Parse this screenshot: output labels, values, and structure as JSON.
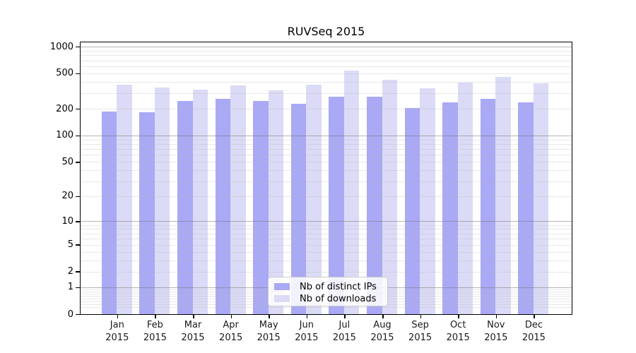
{
  "title": "RUVSeq 2015",
  "chart_data": {
    "type": "bar",
    "title": "RUVSeq 2015",
    "categories": [
      "Jan",
      "Feb",
      "Mar",
      "Apr",
      "May",
      "Jun",
      "Jul",
      "Aug",
      "Sep",
      "Oct",
      "Nov",
      "Dec"
    ],
    "category_year": "2015",
    "series": [
      {
        "name": "Nb of distinct IPs",
        "color": "#a9a9f5",
        "values": [
          187,
          184,
          246,
          258,
          243,
          228,
          274,
          274,
          204,
          236,
          258,
          238
        ]
      },
      {
        "name": "Nb of downloads",
        "color": "#dbdbf7",
        "values": [
          372,
          345,
          327,
          364,
          323,
          370,
          533,
          421,
          339,
          395,
          455,
          386
        ]
      }
    ],
    "yscale": "log1p",
    "yticks": [
      0,
      1,
      2,
      5,
      10,
      20,
      50,
      100,
      200,
      500,
      1000
    ],
    "ylim": [
      0,
      1000
    ],
    "grid": true,
    "legend_position": "inside-bottom-center"
  },
  "colors": {
    "background": "#ffffff",
    "bar_distinct_ips": "#a9a9f5",
    "bar_downloads": "#dbdbf7",
    "grid_major": "#b4b4b4",
    "grid_minor": "#eaeaea",
    "axis": "#000000",
    "legend_border": "#cccccc",
    "legend_background": "#ffffff"
  }
}
